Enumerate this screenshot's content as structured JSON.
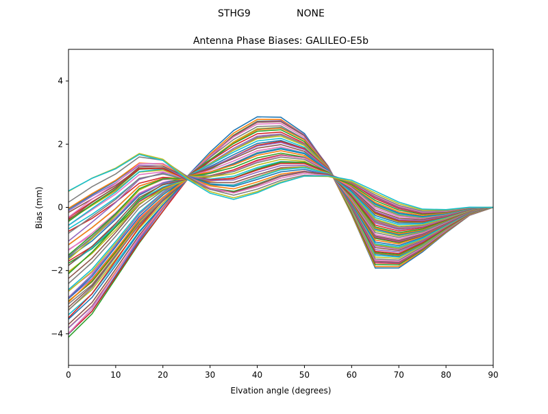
{
  "figure": {
    "suptitle_left": "STHG9",
    "suptitle_right": "NONE"
  },
  "chart_data": {
    "type": "line",
    "title": "Antenna Phase Biases: GALILEO-E5b",
    "xlabel": "Elvation angle (degrees)",
    "ylabel": "Bias (mm)",
    "xlim": [
      0,
      90
    ],
    "ylim": [
      -5,
      5
    ],
    "xticks": [
      0,
      10,
      20,
      30,
      40,
      50,
      60,
      70,
      80,
      90
    ],
    "yticks": [
      -4,
      -2,
      0,
      2,
      4
    ],
    "ytick_labels": [
      "−4",
      "−2",
      "0",
      "2",
      "4"
    ],
    "grid": false,
    "legend": null,
    "x": [
      0,
      5,
      10,
      15,
      20,
      25,
      30,
      35,
      40,
      45,
      50,
      55,
      60,
      65,
      70,
      75,
      80,
      85,
      90
    ],
    "envelope_family_a": [
      -4.0,
      -3.3,
      -2.2,
      -1.1,
      -0.1,
      0.9,
      1.7,
      2.4,
      2.85,
      2.85,
      2.35,
      1.3,
      -0.2,
      -1.9,
      -1.9,
      -1.4,
      -0.8,
      -0.25,
      0.0
    ],
    "envelope_family_b": [
      0.35,
      0.8,
      1.15,
      1.65,
      1.5,
      0.95,
      0.5,
      0.3,
      0.5,
      0.8,
      1.0,
      1.0,
      0.85,
      0.5,
      0.15,
      -0.07,
      -0.08,
      0.0,
      0.0
    ],
    "n_series_approx": 60,
    "colors": [
      "#1f77b4",
      "#ff7f0e",
      "#2ca02c",
      "#d62728",
      "#9467bd",
      "#8c564b",
      "#e377c2",
      "#7f7f7f",
      "#bcbd22",
      "#17becf"
    ]
  }
}
